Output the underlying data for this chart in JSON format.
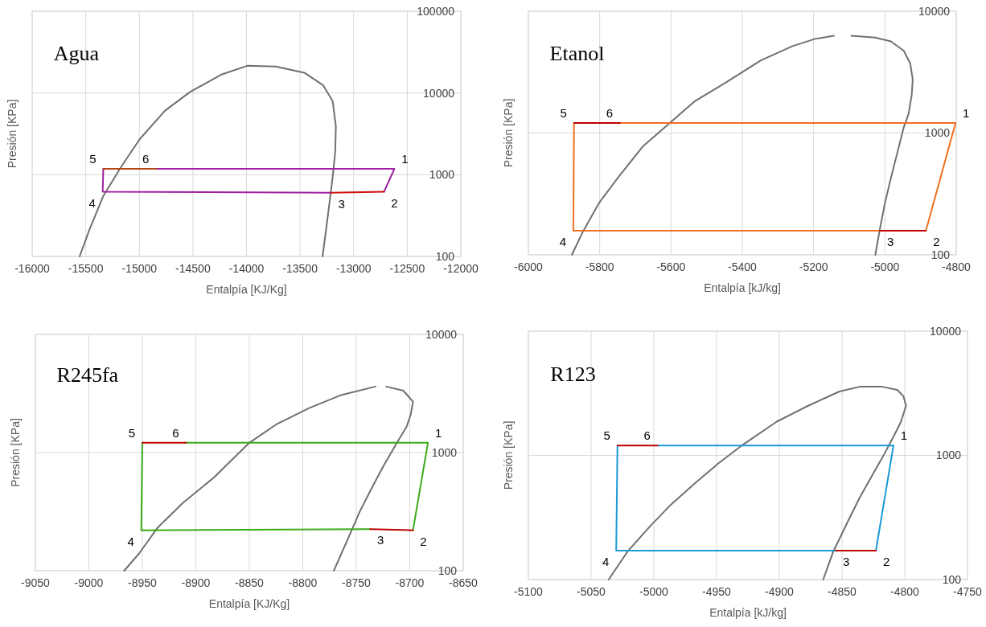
{
  "chart_data": [
    {
      "type": "line",
      "title": "Agua",
      "xlabel": "Entalpía [KJ/Kg]",
      "ylabel": "Presión [KPa]",
      "log": "y",
      "grid": true,
      "xlim": [
        -16000,
        -12000
      ],
      "xticks": [
        -16000,
        -15500,
        -15000,
        -14500,
        -14000,
        -13500,
        -13000,
        -12500,
        -12000
      ],
      "ylim": [
        100,
        100000
      ],
      "yticks": [
        100,
        1000,
        10000,
        100000
      ],
      "series": [
        {
          "color": "#707070",
          "x": [
            -15557,
            -15469,
            -15336,
            -15173,
            -14996,
            -14760,
            -14524,
            -14229,
            -13993,
            -13727,
            -13461,
            -13284,
            -13196,
            -13166,
            -13172,
            -13196,
            -13225,
            -13255,
            -13290
          ],
          "values": [
            100,
            207,
            551,
            1227,
            2730,
            6080,
            10350,
            16900,
            21500,
            21100,
            17700,
            12400,
            7940,
            3900,
            1910,
            940,
            461,
            226,
            100
          ]
        },
        {
          "color": "#a020a0",
          "x": [
            -14843,
            -12620,
            -12717
          ],
          "values": [
            1180,
            1180,
            618
          ]
        },
        {
          "color": "#a020a0",
          "x": [
            -13210,
            -15342,
            -15336
          ],
          "values": [
            602,
            618,
            1180
          ]
        },
        {
          "color": "#b5451b",
          "x": [
            -15336,
            -14843
          ],
          "values": [
            1180,
            1180
          ]
        },
        {
          "color": "#d01010",
          "x": [
            -13210,
            -12717
          ],
          "values": [
            602,
            618
          ]
        }
      ],
      "annotations": [
        {
          "text": "1",
          "x": -12620,
          "y": 1180
        },
        {
          "text": "2",
          "x": -12717,
          "y": 618
        },
        {
          "text": "3",
          "x": -13210,
          "y": 602
        },
        {
          "text": "4",
          "x": -15342,
          "y": 618
        },
        {
          "text": "5",
          "x": -15336,
          "y": 1180
        },
        {
          "text": "6",
          "x": -14843,
          "y": 1180
        }
      ]
    },
    {
      "type": "line",
      "title": "Etanol",
      "xlabel": "Entalpía [kJ/kg]",
      "ylabel": "Presión [KPa]",
      "log": "y",
      "grid": true,
      "xlim": [
        -6000,
        -4800
      ],
      "xticks": [
        -6000,
        -5800,
        -5600,
        -5400,
        -5200,
        -5000,
        -4800
      ],
      "ylim": [
        100,
        10000
      ],
      "yticks": [
        100,
        1000,
        10000
      ],
      "series": [
        {
          "color": "#707070",
          "x": [
            -5878,
            -5847,
            -5802,
            -5749,
            -5678,
            -5606,
            -5535,
            -5446,
            -5348,
            -5259,
            -5196,
            -5143
          ],
          "values": [
            100,
            155,
            266,
            429,
            782,
            1190,
            1810,
            2600,
            3950,
            5170,
            5930,
            6300
          ]
        },
        {
          "color": "#707070",
          "x": [
            -5094,
            -5027,
            -4983,
            -4947,
            -4929,
            -4922,
            -4925,
            -4934,
            -4947,
            -4965,
            -4983,
            -5000,
            -5014,
            -5027
          ],
          "values": [
            6300,
            6080,
            5660,
            4730,
            3720,
            2750,
            2040,
            1425,
            1120,
            693,
            430,
            266,
            164,
            100
          ]
        },
        {
          "color": "#f07020",
          "x": [
            -5743,
            -4802,
            -4885
          ],
          "values": [
            1210,
            1210,
            158
          ]
        },
        {
          "color": "#f07020",
          "x": [
            -5014,
            -5874,
            -5872
          ],
          "values": [
            158,
            158,
            1210
          ]
        },
        {
          "color": "#c00000",
          "x": [
            -5872,
            -5743
          ],
          "values": [
            1210,
            1210
          ]
        },
        {
          "color": "#c00000",
          "x": [
            -5014,
            -4885
          ],
          "values": [
            158,
            158
          ]
        }
      ],
      "annotations": [
        {
          "text": "1",
          "x": -4802,
          "y": 1210
        },
        {
          "text": "2",
          "x": -4885,
          "y": 158
        },
        {
          "text": "3",
          "x": -5014,
          "y": 158
        },
        {
          "text": "4",
          "x": -5874,
          "y": 158
        },
        {
          "text": "5",
          "x": -5872,
          "y": 1210
        },
        {
          "text": "6",
          "x": -5743,
          "y": 1210
        }
      ]
    },
    {
      "type": "line",
      "title": "R245fa",
      "xlabel": "Entalpía [KJ/Kg]",
      "ylabel": "Presión [KPa]",
      "log": "y",
      "grid": true,
      "xlim": [
        -9050,
        -8650
      ],
      "xticks": [
        -9050,
        -9000,
        -8950,
        -8900,
        -8850,
        -8800,
        -8750,
        -8700,
        -8650
      ],
      "ylim": [
        100,
        10000
      ],
      "yticks": [
        100,
        1000,
        10000
      ],
      "series": [
        {
          "color": "#707070",
          "x": [
            -8967,
            -8953,
            -8936,
            -8912,
            -8883,
            -8850,
            -8824,
            -8794,
            -8765,
            -8732
          ],
          "values": [
            100,
            140,
            230,
            376,
            615,
            1210,
            1750,
            2380,
            3050,
            3620
          ]
        },
        {
          "color": "#707070",
          "x": [
            -8722,
            -8706,
            -8697,
            -8699,
            -8703,
            -8712,
            -8724,
            -8735,
            -8747,
            -8756,
            -8771
          ],
          "values": [
            3620,
            3340,
            2700,
            2110,
            1650,
            1210,
            787,
            512,
            313,
            203,
            100
          ]
        },
        {
          "color": "#3aaa1a",
          "x": [
            -8909,
            -8683,
            -8697
          ],
          "values": [
            1210,
            1210,
            220
          ]
        },
        {
          "color": "#3aaa1a",
          "x": [
            -8737,
            -8951,
            -8950
          ],
          "values": [
            225,
            220,
            1210
          ]
        },
        {
          "color": "#c00000",
          "x": [
            -8950,
            -8909
          ],
          "values": [
            1210,
            1210
          ]
        },
        {
          "color": "#c00000",
          "x": [
            -8737,
            -8697
          ],
          "values": [
            225,
            220
          ]
        }
      ],
      "annotations": [
        {
          "text": "1",
          "x": -8683,
          "y": 1210
        },
        {
          "text": "2",
          "x": -8697,
          "y": 220
        },
        {
          "text": "3",
          "x": -8737,
          "y": 225
        },
        {
          "text": "4",
          "x": -8951,
          "y": 220
        },
        {
          "text": "5",
          "x": -8950,
          "y": 1210
        },
        {
          "text": "6",
          "x": -8909,
          "y": 1210
        }
      ]
    },
    {
      "type": "line",
      "title": "R123",
      "xlabel": "Entalpía [kJ/kg]",
      "ylabel": "Presión [KPa]",
      "log": "y",
      "grid": true,
      "xlim": [
        -5100,
        -4750
      ],
      "xticks": [
        -5100,
        -5050,
        -5000,
        -4950,
        -4900,
        -4850,
        -4800,
        -4750
      ],
      "ylim": [
        100,
        10000
      ],
      "yticks": [
        100,
        1000,
        10000
      ],
      "series": [
        {
          "color": "#707070",
          "x": [
            -5036,
            -5021,
            -5003,
            -4986,
            -4966,
            -4948,
            -4928,
            -4902,
            -4877,
            -4852,
            -4836,
            -4818,
            -4806,
            -4801,
            -4799,
            -4803,
            -4808,
            -4816,
            -4826,
            -4836,
            -4846,
            -4857,
            -4865
          ],
          "values": [
            100,
            168,
            269,
            405,
            612,
            871,
            1240,
            1870,
            2510,
            3270,
            3570,
            3570,
            3370,
            2990,
            2510,
            1870,
            1480,
            1040,
            689,
            456,
            285,
            168,
            100
          ]
        },
        {
          "color": "#1a9ad6",
          "x": [
            -4997,
            -4809,
            -4823
          ],
          "values": [
            1202,
            1202,
            171
          ]
        },
        {
          "color": "#1a9ad6",
          "x": [
            -4855,
            -5030,
            -5029
          ],
          "values": [
            171,
            171,
            1202
          ]
        },
        {
          "color": "#c00000",
          "x": [
            -5029,
            -4997
          ],
          "values": [
            1202,
            1202
          ]
        },
        {
          "color": "#c00000",
          "x": [
            -4855,
            -4823
          ],
          "values": [
            171,
            171
          ]
        }
      ],
      "annotations": [
        {
          "text": "1",
          "x": -4809,
          "y": 1202
        },
        {
          "text": "2",
          "x": -4823,
          "y": 171
        },
        {
          "text": "3",
          "x": -4855,
          "y": 171
        },
        {
          "text": "4",
          "x": -5030,
          "y": 171
        },
        {
          "text": "5",
          "x": -5029,
          "y": 1202
        },
        {
          "text": "6",
          "x": -4997,
          "y": 1202
        }
      ]
    }
  ]
}
